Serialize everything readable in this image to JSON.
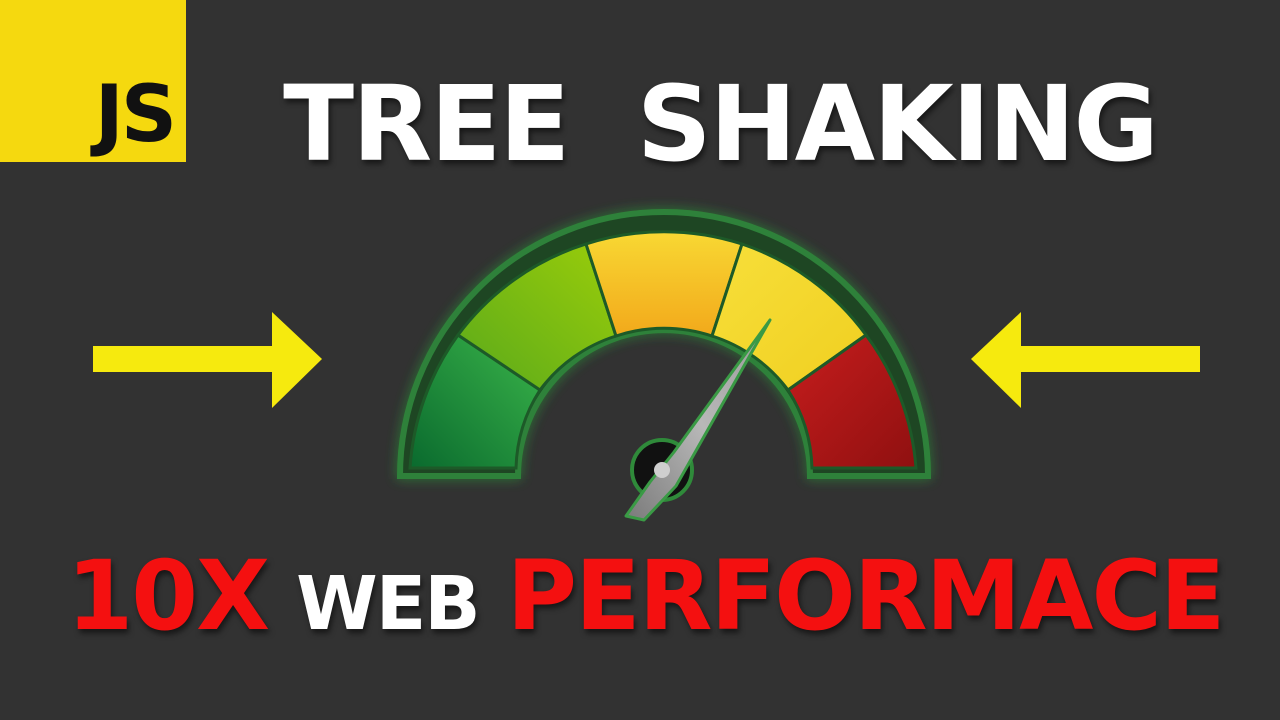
{
  "logo": {
    "text": "JS"
  },
  "title": {
    "text": "TREE  SHAKING"
  },
  "subtitle": {
    "part1": "10X",
    "part2": "WEB",
    "part3": "PERFORMACE"
  },
  "colors": {
    "background": "#323232",
    "logo_yellow": "#f5d90f",
    "arrow_yellow": "#f6ea0e",
    "headline_red": "#f41010",
    "gauge_dark_green": "#0f7a35",
    "gauge_light_green": "#86c40c",
    "gauge_orange_yellow": "#f3c01a",
    "gauge_yellow": "#f6dc36",
    "gauge_red": "#b71818"
  },
  "icons": [
    "right-arrow-icon",
    "left-arrow-icon",
    "speedometer-icon"
  ],
  "gauge": {
    "segments": 5,
    "needle_position": "yellow segment"
  }
}
